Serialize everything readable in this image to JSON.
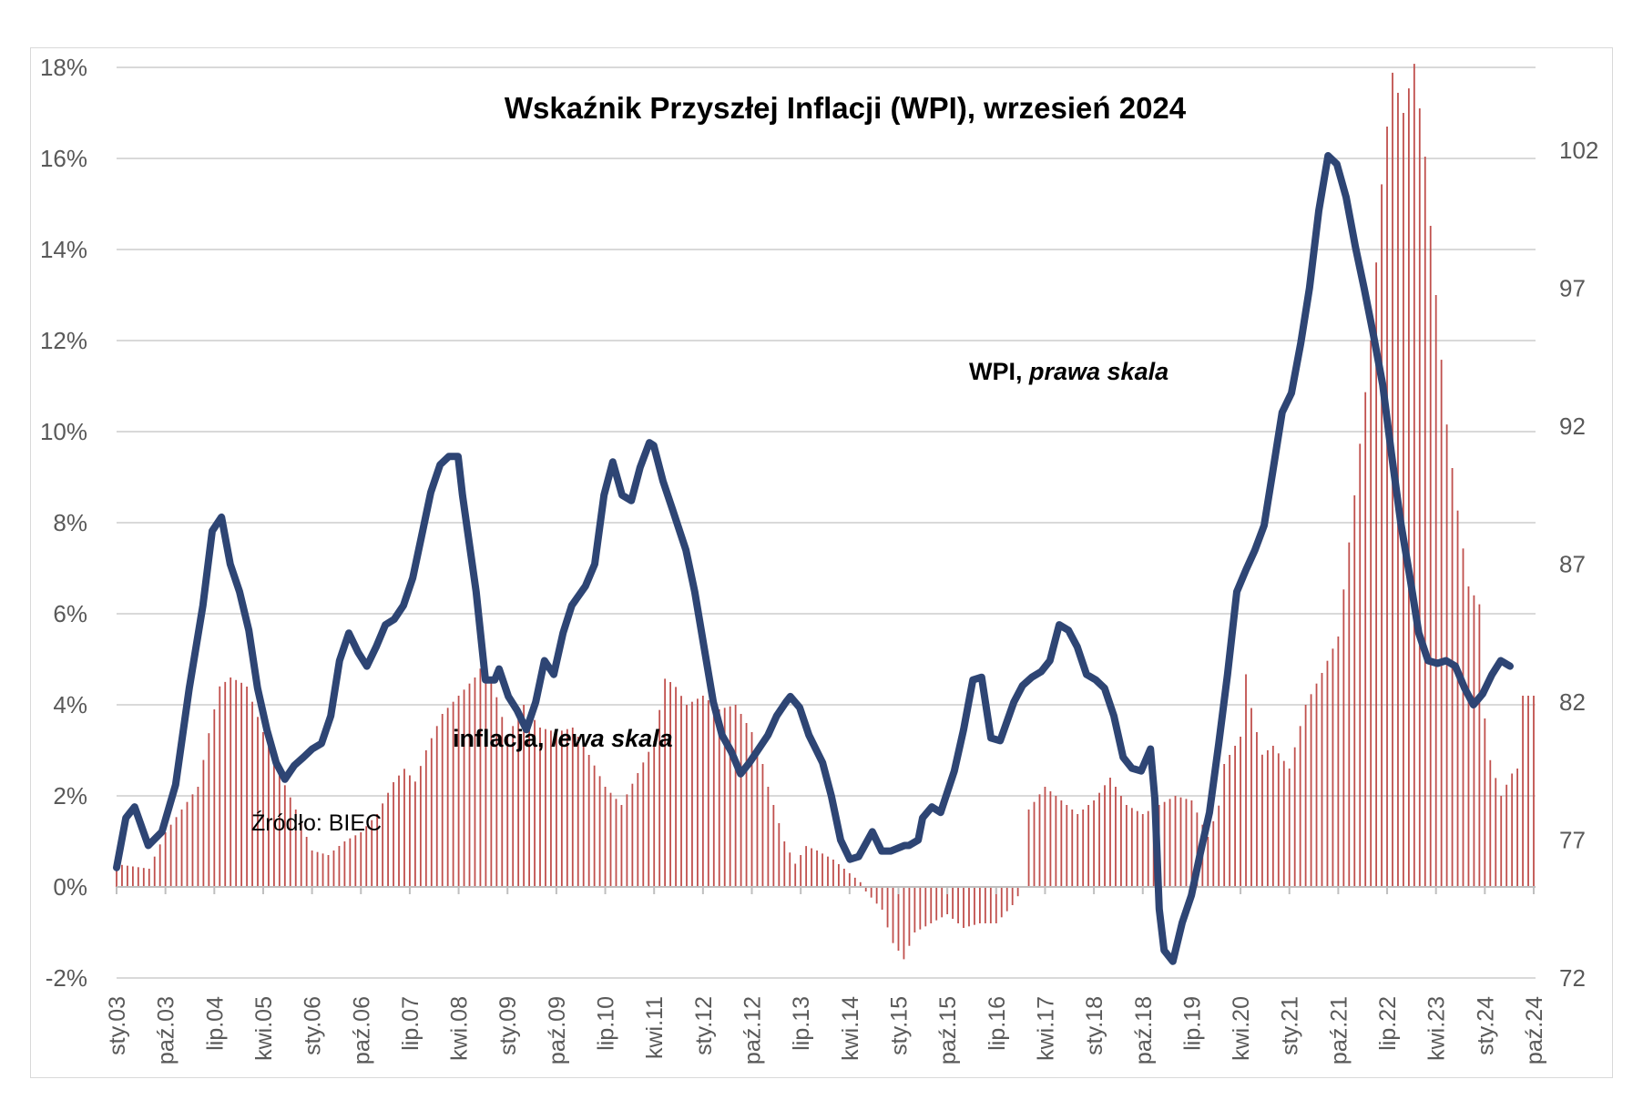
{
  "chart_data": {
    "type": "bar+line",
    "title": "Wskaźnik Przyszłej Inflacji (WPI), wrzesień 2024",
    "source_note": "Źródło: BIEC",
    "left_axis": {
      "ylim": [
        -2,
        18
      ],
      "ticks": [
        -2,
        0,
        2,
        4,
        6,
        8,
        10,
        12,
        14,
        16,
        18
      ],
      "tick_labels": [
        "-2%",
        "0%",
        "2%",
        "4%",
        "6%",
        "8%",
        "10%",
        "12%",
        "14%",
        "16%",
        "18%"
      ]
    },
    "right_axis": {
      "ylim": [
        72,
        105
      ],
      "ticks": [
        72,
        77,
        82,
        87,
        92,
        97,
        102
      ],
      "tick_labels": [
        "72",
        "77",
        "82",
        "87",
        "92",
        "97",
        "102"
      ]
    },
    "x_tick_labels": [
      "sty.03",
      "paź.03",
      "lip.04",
      "kwi.05",
      "sty.06",
      "paź.06",
      "lip.07",
      "kwi.08",
      "sty.09",
      "paź.09",
      "lip.10",
      "kwi.11",
      "sty.12",
      "paź.12",
      "lip.13",
      "kwi.14",
      "sty.15",
      "paź.15",
      "lip.16",
      "kwi.17",
      "sty.18",
      "paź.18",
      "lip.19",
      "kwi.20",
      "sty.21",
      "paź.21",
      "lip.22",
      "kwi.23",
      "sty.24",
      "paź.24"
    ],
    "grid": true,
    "series": [
      {
        "name": "inflacja, lewa skala",
        "label_prefix": "inflacja, ",
        "label_italic": "lewa skala",
        "kind": "bar",
        "axis": "left",
        "color": "#c0504d",
        "anchors": [
          [
            2003.0,
            0.5
          ],
          [
            2003.5,
            0.4
          ],
          [
            2003.75,
            1.2
          ],
          [
            2004.0,
            1.7
          ],
          [
            2004.25,
            2.2
          ],
          [
            2004.42,
            3.4
          ],
          [
            2004.58,
            4.4
          ],
          [
            2004.75,
            4.6
          ],
          [
            2004.9,
            4.5
          ],
          [
            2005.0,
            4.4
          ],
          [
            2005.25,
            3.4
          ],
          [
            2005.5,
            2.5
          ],
          [
            2005.75,
            1.7
          ],
          [
            2006.0,
            0.8
          ],
          [
            2006.25,
            0.7
          ],
          [
            2006.5,
            1.0
          ],
          [
            2006.75,
            1.2
          ],
          [
            2007.0,
            1.6
          ],
          [
            2007.25,
            2.3
          ],
          [
            2007.42,
            2.6
          ],
          [
            2007.58,
            2.3
          ],
          [
            2007.75,
            3.0
          ],
          [
            2008.0,
            3.8
          ],
          [
            2008.25,
            4.2
          ],
          [
            2008.5,
            4.6
          ],
          [
            2008.58,
            4.8
          ],
          [
            2008.75,
            4.6
          ],
          [
            2009.0,
            3.3
          ],
          [
            2009.25,
            4.0
          ],
          [
            2009.5,
            3.5
          ],
          [
            2009.75,
            3.4
          ],
          [
            2010.0,
            3.5
          ],
          [
            2010.25,
            2.9
          ],
          [
            2010.5,
            2.2
          ],
          [
            2010.75,
            1.8
          ],
          [
            2011.0,
            2.5
          ],
          [
            2011.25,
            3.2
          ],
          [
            2011.42,
            4.6
          ],
          [
            2011.58,
            4.4
          ],
          [
            2011.75,
            4.0
          ],
          [
            2012.0,
            4.2
          ],
          [
            2012.25,
            3.9
          ],
          [
            2012.5,
            4.0
          ],
          [
            2012.75,
            3.4
          ],
          [
            2012.9,
            2.8
          ],
          [
            2013.0,
            2.2
          ],
          [
            2013.25,
            1.0
          ],
          [
            2013.42,
            0.5
          ],
          [
            2013.58,
            0.9
          ],
          [
            2013.75,
            0.8
          ],
          [
            2014.0,
            0.6
          ],
          [
            2014.25,
            0.3
          ],
          [
            2014.42,
            0.1
          ],
          [
            2014.5,
            -0.1
          ],
          [
            2014.75,
            -0.5
          ],
          [
            2014.9,
            -1.2
          ],
          [
            2015.0,
            -1.4
          ],
          [
            2015.08,
            -1.6
          ],
          [
            2015.25,
            -1.0
          ],
          [
            2015.5,
            -0.8
          ],
          [
            2015.75,
            -0.6
          ],
          [
            2016.0,
            -0.9
          ],
          [
            2016.25,
            -0.8
          ],
          [
            2016.5,
            -0.8
          ],
          [
            2016.75,
            -0.4
          ],
          [
            2016.92,
            0.0
          ],
          [
            2017.0,
            1.7
          ],
          [
            2017.25,
            2.2
          ],
          [
            2017.5,
            1.9
          ],
          [
            2017.75,
            1.6
          ],
          [
            2018.0,
            1.9
          ],
          [
            2018.25,
            2.4
          ],
          [
            2018.5,
            1.8
          ],
          [
            2018.75,
            1.6
          ],
          [
            2019.0,
            1.8
          ],
          [
            2019.25,
            2.0
          ],
          [
            2019.5,
            1.9
          ],
          [
            2019.75,
            1.1
          ],
          [
            2019.92,
            1.8
          ],
          [
            2020.0,
            2.7
          ],
          [
            2020.25,
            3.3
          ],
          [
            2020.33,
            4.7
          ],
          [
            2020.42,
            3.9
          ],
          [
            2020.58,
            2.9
          ],
          [
            2020.75,
            3.1
          ],
          [
            2021.0,
            2.6
          ],
          [
            2021.25,
            4.0
          ],
          [
            2021.5,
            4.7
          ],
          [
            2021.75,
            5.5
          ],
          [
            2022.0,
            8.6
          ],
          [
            2022.25,
            12.0
          ],
          [
            2022.42,
            15.5
          ],
          [
            2022.58,
            17.9
          ],
          [
            2022.75,
            17.0
          ],
          [
            2022.92,
            18.1
          ],
          [
            2023.08,
            16.1
          ],
          [
            2023.25,
            13.0
          ],
          [
            2023.42,
            10.1
          ],
          [
            2023.58,
            8.3
          ],
          [
            2023.75,
            6.6
          ],
          [
            2023.92,
            6.2
          ],
          [
            2024.0,
            3.7
          ],
          [
            2024.08,
            2.8
          ],
          [
            2024.25,
            2.0
          ],
          [
            2024.42,
            2.5
          ],
          [
            2024.5,
            2.6
          ],
          [
            2024.58,
            4.2
          ]
        ]
      },
      {
        "name": "WPI, prawa skala",
        "label_prefix": "WPI, ",
        "label_italic": "prawa skala",
        "kind": "line",
        "axis": "right",
        "color": "#2e4574",
        "anchors": [
          [
            2003.0,
            76.0
          ],
          [
            2003.17,
            77.8
          ],
          [
            2003.33,
            78.2
          ],
          [
            2003.58,
            76.8
          ],
          [
            2003.83,
            77.3
          ],
          [
            2004.08,
            79.0
          ],
          [
            2004.33,
            82.5
          ],
          [
            2004.58,
            85.5
          ],
          [
            2004.75,
            88.2
          ],
          [
            2004.92,
            88.7
          ],
          [
            2005.08,
            87.0
          ],
          [
            2005.25,
            86.0
          ],
          [
            2005.42,
            84.6
          ],
          [
            2005.58,
            82.5
          ],
          [
            2005.75,
            81.0
          ],
          [
            2005.92,
            79.8
          ],
          [
            2006.08,
            79.2
          ],
          [
            2006.25,
            79.7
          ],
          [
            2006.42,
            80.0
          ],
          [
            2006.58,
            80.3
          ],
          [
            2006.75,
            80.5
          ],
          [
            2006.92,
            81.5
          ],
          [
            2007.08,
            83.5
          ],
          [
            2007.25,
            84.5
          ],
          [
            2007.42,
            83.8
          ],
          [
            2007.58,
            83.3
          ],
          [
            2007.75,
            84.0
          ],
          [
            2007.92,
            84.8
          ],
          [
            2008.08,
            85.0
          ],
          [
            2008.25,
            85.5
          ],
          [
            2008.42,
            86.5
          ],
          [
            2008.58,
            88.0
          ],
          [
            2008.75,
            89.6
          ],
          [
            2008.92,
            90.6
          ],
          [
            2009.08,
            90.9
          ],
          [
            2009.25,
            90.9
          ],
          [
            2009.33,
            89.5
          ],
          [
            2009.58,
            86.0
          ],
          [
            2009.75,
            82.8
          ],
          [
            2009.92,
            82.8
          ],
          [
            2010.0,
            83.2
          ],
          [
            2010.17,
            82.2
          ],
          [
            2010.33,
            81.7
          ],
          [
            2010.5,
            81.0
          ],
          [
            2010.67,
            82.0
          ],
          [
            2010.83,
            83.5
          ],
          [
            2011.0,
            83.0
          ],
          [
            2011.17,
            84.5
          ],
          [
            2011.33,
            85.5
          ],
          [
            2011.58,
            86.2
          ],
          [
            2011.75,
            87.0
          ],
          [
            2011.92,
            89.5
          ],
          [
            2012.08,
            90.7
          ],
          [
            2012.25,
            89.5
          ],
          [
            2012.42,
            89.3
          ],
          [
            2012.58,
            90.5
          ],
          [
            2012.75,
            91.4
          ],
          [
            2012.83,
            91.3
          ],
          [
            2013.0,
            90.0
          ],
          [
            2013.17,
            89.0
          ],
          [
            2013.42,
            87.5
          ],
          [
            2013.58,
            86.0
          ],
          [
            2013.75,
            84.0
          ],
          [
            2013.92,
            82.0
          ],
          [
            2014.08,
            80.8
          ],
          [
            2014.25,
            80.2
          ],
          [
            2014.42,
            79.4
          ],
          [
            2014.58,
            79.8
          ],
          [
            2014.75,
            80.3
          ],
          [
            2014.92,
            80.8
          ],
          [
            2015.08,
            81.5
          ],
          [
            2015.25,
            82.0
          ],
          [
            2015.33,
            82.2
          ],
          [
            2015.5,
            81.8
          ],
          [
            2015.67,
            80.8
          ],
          [
            2015.92,
            79.8
          ],
          [
            2016.08,
            78.6
          ],
          [
            2016.25,
            77.0
          ],
          [
            2016.42,
            76.3
          ],
          [
            2016.58,
            76.4
          ],
          [
            2016.83,
            77.3
          ],
          [
            2017.0,
            76.6
          ],
          [
            2017.17,
            76.6
          ],
          [
            2017.42,
            76.8
          ],
          [
            2017.5,
            76.8
          ],
          [
            2017.67,
            77.0
          ],
          [
            2017.75,
            77.8
          ],
          [
            2017.92,
            78.2
          ],
          [
            2018.08,
            78.0
          ],
          [
            2018.33,
            79.5
          ],
          [
            2018.5,
            81.0
          ],
          [
            2018.67,
            82.8
          ],
          [
            2018.83,
            82.9
          ],
          [
            2019.0,
            80.7
          ],
          [
            2019.17,
            80.6
          ],
          [
            2019.42,
            82.0
          ],
          [
            2019.58,
            82.6
          ],
          [
            2019.75,
            82.9
          ],
          [
            2019.92,
            83.1
          ],
          [
            2020.08,
            83.5
          ],
          [
            2020.25,
            84.8
          ],
          [
            2020.42,
            84.6
          ],
          [
            2020.58,
            84.0
          ],
          [
            2020.75,
            83.0
          ],
          [
            2020.92,
            82.8
          ],
          [
            2021.08,
            82.5
          ],
          [
            2021.25,
            81.5
          ],
          [
            2021.42,
            80.0
          ],
          [
            2021.58,
            79.6
          ],
          [
            2021.75,
            79.5
          ],
          [
            2021.92,
            80.3
          ],
          [
            2022.0,
            78.5
          ],
          [
            2022.08,
            74.5
          ],
          [
            2022.17,
            73.0
          ],
          [
            2022.33,
            72.6
          ],
          [
            2022.5,
            74.0
          ],
          [
            2022.67,
            75.0
          ],
          [
            2022.83,
            76.5
          ],
          [
            2023.0,
            78.0
          ],
          [
            2023.17,
            80.5
          ],
          [
            2023.33,
            83.0
          ],
          [
            2023.5,
            86.0
          ],
          [
            2023.67,
            86.8
          ],
          [
            2023.83,
            87.5
          ],
          [
            2024.0,
            88.4
          ],
          [
            2024.17,
            90.5
          ],
          [
            2024.33,
            92.5
          ],
          [
            2024.5,
            93.2
          ],
          [
            2024.67,
            95.0
          ],
          [
            2024.83,
            97.0
          ],
          [
            2025.0,
            99.8
          ],
          [
            2025.17,
            101.8
          ],
          [
            2025.33,
            101.5
          ],
          [
            2025.5,
            100.3
          ],
          [
            2025.67,
            98.5
          ],
          [
            2025.83,
            97.0
          ],
          [
            2026.0,
            95.3
          ],
          [
            2026.17,
            93.5
          ],
          [
            2026.33,
            91.0
          ],
          [
            2026.5,
            88.5
          ],
          [
            2026.67,
            86.5
          ],
          [
            2026.83,
            84.5
          ],
          [
            2027.0,
            83.5
          ],
          [
            2027.17,
            83.4
          ],
          [
            2027.33,
            83.5
          ],
          [
            2027.5,
            83.3
          ],
          [
            2027.67,
            82.5
          ],
          [
            2027.83,
            81.9
          ],
          [
            2028.0,
            82.3
          ],
          [
            2028.17,
            83.0
          ],
          [
            2028.33,
            83.5
          ],
          [
            2028.5,
            83.3
          ]
        ]
      }
    ]
  }
}
